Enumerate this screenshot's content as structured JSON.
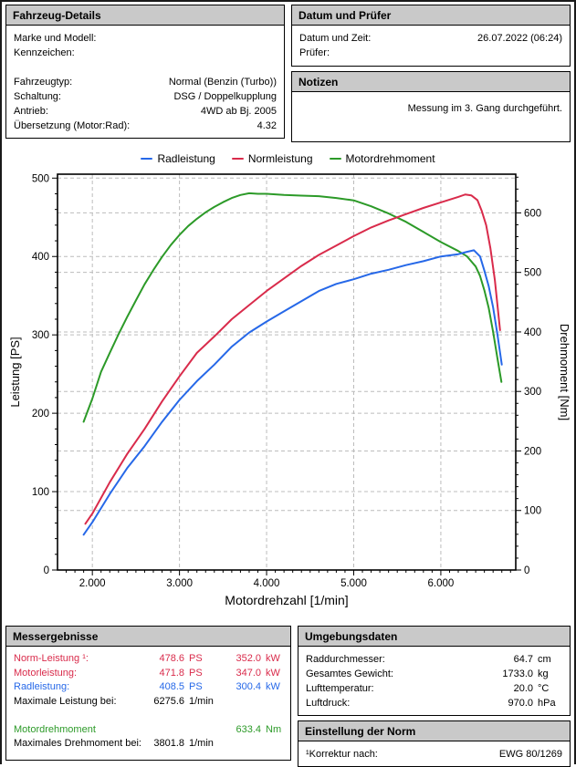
{
  "vehicle": {
    "title": "Fahrzeug-Details",
    "rows": [
      {
        "label": "Marke und Modell:",
        "value": ""
      },
      {
        "label": "Kennzeichen:",
        "value": ""
      },
      {
        "label": "",
        "value": ""
      },
      {
        "label": "Fahrzeugtyp:",
        "value": "Normal (Benzin (Turbo))"
      },
      {
        "label": "Schaltung:",
        "value": "DSG / Doppelkupplung"
      },
      {
        "label": "Antrieb:",
        "value": "4WD ab Bj. 2005"
      },
      {
        "label": "Übersetzung (Motor:Rad):",
        "value": "4.32"
      }
    ]
  },
  "date_panel": {
    "title": "Datum und Prüfer",
    "rows": [
      {
        "label": "Datum und Zeit:",
        "value": "26.07.2022 (06:24)"
      },
      {
        "label": "Prüfer:",
        "value": ""
      }
    ]
  },
  "notes_panel": {
    "title": "Notizen",
    "note": "Messung im 3. Gang durchgeführt."
  },
  "results": {
    "title": "Messergebnisse",
    "rows": [
      {
        "label": "Norm-Leistung ¹:",
        "v1": "478.6",
        "u1": "PS",
        "v2": "352.0",
        "u2": "kW",
        "color": "red"
      },
      {
        "label": "Motorleistung:",
        "v1": "471.8",
        "u1": "PS",
        "v2": "347.0",
        "u2": "kW",
        "color": "red"
      },
      {
        "label": "Radleistung:",
        "v1": "408.5",
        "u1": "PS",
        "v2": "300.4",
        "u2": "kW",
        "color": "blue"
      },
      {
        "label": "Maximale Leistung bei:",
        "v1": "6275.6",
        "u1": "1/min",
        "v2": "",
        "u2": "",
        "color": "black"
      },
      {
        "label": "",
        "v1": "",
        "u1": "",
        "v2": "",
        "u2": "",
        "color": "black"
      },
      {
        "label": "Motordrehmoment",
        "v1": "",
        "u1": "",
        "v2": "633.4",
        "u2": "Nm",
        "color": "green"
      },
      {
        "label": "Maximales Drehmoment bei:",
        "v1": "3801.8",
        "u1": "1/min",
        "v2": "",
        "u2": "",
        "color": "black"
      }
    ]
  },
  "environment": {
    "title": "Umgebungsdaten",
    "rows": [
      {
        "label": "Raddurchmesser:",
        "value": "64.7",
        "unit": "cm"
      },
      {
        "label": "Gesamtes Gewicht:",
        "value": "1733.0",
        "unit": "kg"
      },
      {
        "label": "Lufttemperatur:",
        "value": "20.0",
        "unit": "°C"
      },
      {
        "label": "Luftdruck:",
        "value": "970.0",
        "unit": "hPa"
      }
    ]
  },
  "norm_panel": {
    "title": "Einstellung der Norm",
    "rows": [
      {
        "label": "¹Korrektur nach:",
        "value": "EWG 80/1269"
      }
    ]
  },
  "colors": {
    "blue": "#2668e8",
    "red": "#d92b4b",
    "green": "#2c9a28",
    "header_bg": "#c9c9c9",
    "grid": "#bcbcbc"
  },
  "chart_data": {
    "type": "line",
    "xlabel": "Motordrehzahl [1/min]",
    "ylabel_left": "Leistung [PS]",
    "ylabel_right": "Drehmoment [Nm]",
    "xlim": [
      1600,
      6860
    ],
    "ylim_left": [
      0,
      505
    ],
    "ylim_right": [
      0,
      665
    ],
    "x_ticks": [
      2000,
      3000,
      4000,
      5000,
      6000
    ],
    "x_tick_labels": [
      "2.000",
      "3.000",
      "4.000",
      "5.000",
      "6.000"
    ],
    "x_minor_step": 100,
    "y_ticks_left": [
      0,
      100,
      200,
      300,
      400,
      500
    ],
    "y_ticks_right": [
      0,
      100,
      200,
      300,
      400,
      500,
      600
    ],
    "y_minor_step": 20,
    "grid": "dashed",
    "legend_position": "top",
    "series": [
      {
        "name": "Motordrehmoment",
        "axis": "right",
        "unit": "Nm",
        "color": "#2c9a28",
        "points": [
          [
            1900,
            249
          ],
          [
            2000,
            288
          ],
          [
            2100,
            333
          ],
          [
            2200,
            365
          ],
          [
            2300,
            396
          ],
          [
            2400,
            425
          ],
          [
            2500,
            453
          ],
          [
            2600,
            480
          ],
          [
            2700,
            504
          ],
          [
            2800,
            526
          ],
          [
            2900,
            546
          ],
          [
            3000,
            563
          ],
          [
            3100,
            578
          ],
          [
            3200,
            590
          ],
          [
            3300,
            601
          ],
          [
            3400,
            610
          ],
          [
            3500,
            618
          ],
          [
            3600,
            625
          ],
          [
            3700,
            630
          ],
          [
            3800,
            633
          ],
          [
            3900,
            632
          ],
          [
            4000,
            632
          ],
          [
            4200,
            630
          ],
          [
            4400,
            629
          ],
          [
            4600,
            628
          ],
          [
            4800,
            625
          ],
          [
            5000,
            621
          ],
          [
            5200,
            611
          ],
          [
            5400,
            599
          ],
          [
            5600,
            585
          ],
          [
            5800,
            568
          ],
          [
            6000,
            551
          ],
          [
            6200,
            536
          ],
          [
            6300,
            527
          ],
          [
            6400,
            510
          ],
          [
            6450,
            494
          ],
          [
            6500,
            470
          ],
          [
            6550,
            440
          ],
          [
            6600,
            400
          ],
          [
            6650,
            355
          ],
          [
            6695,
            316
          ]
        ],
        "max_value": 633.4,
        "max_at_rpm": 3801.8
      },
      {
        "name": "Normleistung",
        "axis": "left",
        "unit": "PS",
        "color": "#d92b4b",
        "points": [
          [
            1920,
            59
          ],
          [
            2000,
            72
          ],
          [
            2200,
            112
          ],
          [
            2400,
            148
          ],
          [
            2600,
            180
          ],
          [
            2800,
            215
          ],
          [
            3000,
            247
          ],
          [
            3200,
            277
          ],
          [
            3400,
            298
          ],
          [
            3600,
            320
          ],
          [
            3800,
            338
          ],
          [
            4000,
            356
          ],
          [
            4200,
            372
          ],
          [
            4400,
            388
          ],
          [
            4600,
            402
          ],
          [
            4800,
            414
          ],
          [
            5000,
            426
          ],
          [
            5200,
            437
          ],
          [
            5400,
            446
          ],
          [
            5600,
            454
          ],
          [
            5800,
            462
          ],
          [
            6000,
            469
          ],
          [
            6200,
            476
          ],
          [
            6280,
            479
          ],
          [
            6350,
            478
          ],
          [
            6420,
            472
          ],
          [
            6470,
            458
          ],
          [
            6520,
            440
          ],
          [
            6570,
            410
          ],
          [
            6620,
            370
          ],
          [
            6680,
            306
          ]
        ],
        "max_value": 478.6,
        "max_at_rpm": 6275.6
      },
      {
        "name": "Radleistung",
        "axis": "left",
        "unit": "PS",
        "color": "#2668e8",
        "points": [
          [
            1900,
            45
          ],
          [
            2000,
            61
          ],
          [
            2200,
            97
          ],
          [
            2400,
            130
          ],
          [
            2600,
            158
          ],
          [
            2800,
            189
          ],
          [
            3000,
            217
          ],
          [
            3200,
            241
          ],
          [
            3400,
            262
          ],
          [
            3600,
            285
          ],
          [
            3800,
            303
          ],
          [
            4000,
            317
          ],
          [
            4200,
            330
          ],
          [
            4400,
            343
          ],
          [
            4600,
            356
          ],
          [
            4800,
            365
          ],
          [
            5000,
            371
          ],
          [
            5200,
            378
          ],
          [
            5400,
            383
          ],
          [
            5600,
            389
          ],
          [
            5800,
            394
          ],
          [
            6000,
            400
          ],
          [
            6200,
            403
          ],
          [
            6300,
            406
          ],
          [
            6380,
            408
          ],
          [
            6450,
            400
          ],
          [
            6500,
            382
          ],
          [
            6550,
            362
          ],
          [
            6600,
            335
          ],
          [
            6650,
            300
          ],
          [
            6700,
            262
          ]
        ],
        "max_value": 408.5,
        "max_at_rpm": 6275.6
      }
    ],
    "legend_order": [
      "Radleistung",
      "Normleistung",
      "Motordrehmoment"
    ]
  }
}
